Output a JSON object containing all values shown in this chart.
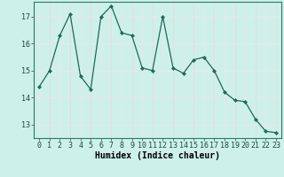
{
  "x": [
    0,
    1,
    2,
    3,
    4,
    5,
    6,
    7,
    8,
    9,
    10,
    11,
    12,
    13,
    14,
    15,
    16,
    17,
    18,
    19,
    20,
    21,
    22,
    23
  ],
  "y": [
    14.4,
    15.0,
    16.3,
    17.1,
    14.8,
    14.3,
    17.0,
    17.4,
    16.4,
    16.3,
    15.1,
    15.0,
    17.0,
    15.1,
    14.9,
    15.4,
    15.5,
    15.0,
    14.2,
    13.9,
    13.85,
    13.2,
    12.75,
    12.7
  ],
  "xlabel": "Humidex (Indice chaleur)",
  "xlim": [
    -0.5,
    23.5
  ],
  "ylim": [
    12.5,
    17.55
  ],
  "yticks": [
    13,
    14,
    15,
    16,
    17
  ],
  "xticks": [
    0,
    1,
    2,
    3,
    4,
    5,
    6,
    7,
    8,
    9,
    10,
    11,
    12,
    13,
    14,
    15,
    16,
    17,
    18,
    19,
    20,
    21,
    22,
    23
  ],
  "line_color": "#1a6b5a",
  "marker": "D",
  "marker_size": 2.2,
  "bg_color": "#cef0ea",
  "grid_white": "#e8e8e8",
  "grid_pink": "#f0d8d8",
  "axis_fontsize": 7,
  "tick_fontsize": 6
}
